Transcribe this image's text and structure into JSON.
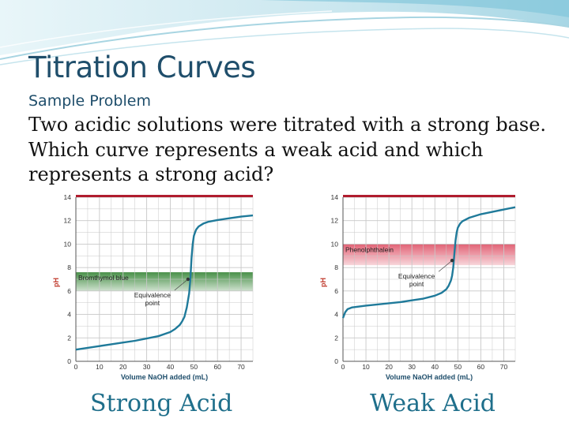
{
  "slide": {
    "title": "Titration Curves",
    "subtitle": "Sample Problem",
    "problem_text": "Two acidic solutions were titrated with a strong base. Which curve represents a weak acid and which represents a strong acid?",
    "caption_left": "Strong Acid",
    "caption_right": "Weak Acid"
  },
  "colors": {
    "title": "#1f4e6b",
    "caption": "#1f6f8b",
    "curve": "#1f7a9a",
    "grid": "#c8c8c8",
    "top_bar": "#b01c2e",
    "indicator_green": "#3e8a3e",
    "indicator_pink": "#e05a6e"
  },
  "chart_data": [
    {
      "type": "line",
      "xlabel": "Volume NaOH added (mL)",
      "ylabel": "pH",
      "x_ticks": [
        0,
        10,
        20,
        30,
        40,
        50,
        60,
        70
      ],
      "y_ticks": [
        0,
        2,
        4,
        6,
        8,
        10,
        12,
        14
      ],
      "xlim": [
        0,
        75
      ],
      "ylim": [
        0,
        14
      ],
      "grid": true,
      "series": [
        {
          "x": [
            0,
            5,
            10,
            15,
            20,
            25,
            30,
            35,
            40,
            42,
            44,
            45,
            46,
            47,
            48,
            48.5,
            49,
            49.5,
            50,
            50.5,
            51,
            52,
            54,
            56,
            60,
            65,
            70,
            75
          ],
          "y": [
            1.0,
            1.15,
            1.3,
            1.45,
            1.6,
            1.75,
            1.95,
            2.15,
            2.5,
            2.75,
            3.1,
            3.4,
            3.8,
            4.6,
            5.8,
            7.0,
            8.8,
            10.0,
            10.7,
            11.0,
            11.25,
            11.5,
            11.75,
            11.9,
            12.05,
            12.2,
            12.35,
            12.45
          ]
        }
      ],
      "indicator_band": {
        "label": "Bromthymol blue",
        "y_range": [
          6.0,
          7.6
        ]
      },
      "annotations": [
        {
          "text": "Equivalence",
          "text2": "point",
          "x": 47.5,
          "y": 7.0
        }
      ]
    },
    {
      "type": "line",
      "xlabel": "Volume NaOH added (mL)",
      "ylabel": "pH",
      "x_ticks": [
        0,
        10,
        20,
        30,
        40,
        50,
        60,
        70
      ],
      "y_ticks": [
        0,
        2,
        4,
        6,
        8,
        10,
        12,
        14
      ],
      "xlim": [
        0,
        75
      ],
      "ylim": [
        0,
        14
      ],
      "grid": true,
      "series": [
        {
          "x": [
            0,
            1,
            2,
            4,
            6,
            10,
            15,
            20,
            25,
            30,
            35,
            40,
            43,
            45,
            46,
            47,
            47.5,
            48,
            48.5,
            49,
            49.5,
            50,
            51,
            52,
            55,
            60,
            65,
            70,
            75
          ],
          "y": [
            3.7,
            4.2,
            4.45,
            4.6,
            4.65,
            4.75,
            4.85,
            4.95,
            5.05,
            5.2,
            5.35,
            5.6,
            5.85,
            6.15,
            6.45,
            6.9,
            7.3,
            8.0,
            9.2,
            10.3,
            11.0,
            11.4,
            11.75,
            11.95,
            12.25,
            12.55,
            12.75,
            12.95,
            13.15
          ]
        }
      ],
      "indicator_band": {
        "label": "Phenolphthalein",
        "y_range": [
          8.2,
          10.0
        ]
      },
      "annotations": [
        {
          "text": "Equivalence",
          "text2": "point",
          "x": 47.5,
          "y": 8.6
        }
      ]
    }
  ]
}
